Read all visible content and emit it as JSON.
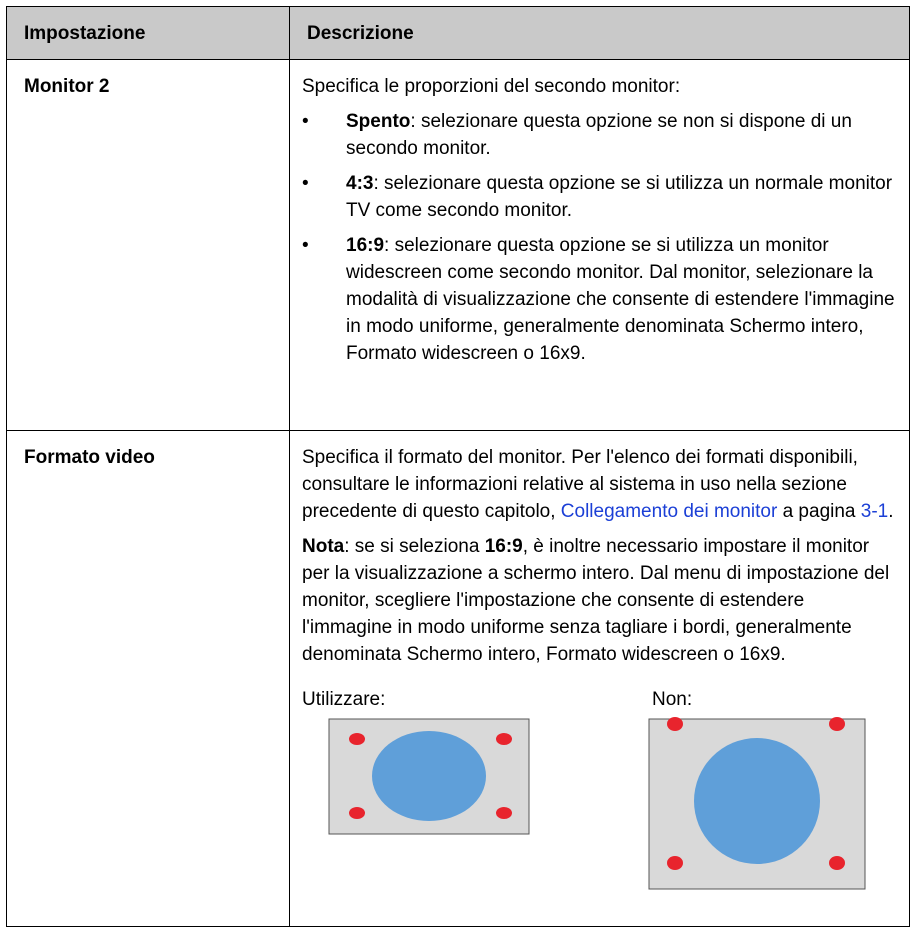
{
  "table": {
    "header": [
      "Impostazione",
      "Descrizione"
    ],
    "rows": [
      {
        "setting": "Monitor 2",
        "intro": "Specifica le proporzioni del secondo monitor:",
        "bullets": [
          {
            "term": "Spento",
            "text": ": selezionare questa opzione se non si dispone di un secondo monitor."
          },
          {
            "term": "4:3",
            "text": ": selezionare questa opzione se si utilizza un normale monitor TV come secondo monitor."
          },
          {
            "term": "16:9",
            "text": ": selezionare questa opzione se si utilizza un monitor widescreen come secondo monitor. Dal monitor, selezionare la modalità di visualizzazione che consente di estendere l'immagine in modo uniforme, generalmente denominata Schermo intero, Formato widescreen o 16x9."
          }
        ]
      },
      {
        "setting": "Formato video",
        "paragraph": {
          "text": "Specifica il formato del monitor. Per l'elenco dei formati disponibili, consultare le informazioni relative al sistema in uso nella sezione precedente di questo capitolo, ",
          "link": "Collegamento dei monitor",
          "middle": " a pagina ",
          "page_link": "3-1",
          "end": "."
        },
        "note": {
          "label": "Nota",
          "text1": ": se si seleziona ",
          "value": "16:9",
          "text2": ", è inoltre necessario impostare il monitor per la visualizzazione a schermo intero. Dal menu di impostazione del monitor, scegliere l'impostazione che consente di estendere l'immagine in modo uniforme senza tagliare i bordi, generalmente denominata Schermo intero, Formato widescreen o 16x9."
        },
        "images": [
          {
            "label": "Utilizzare:"
          },
          {
            "label": "Non:"
          }
        ]
      }
    ]
  }
}
